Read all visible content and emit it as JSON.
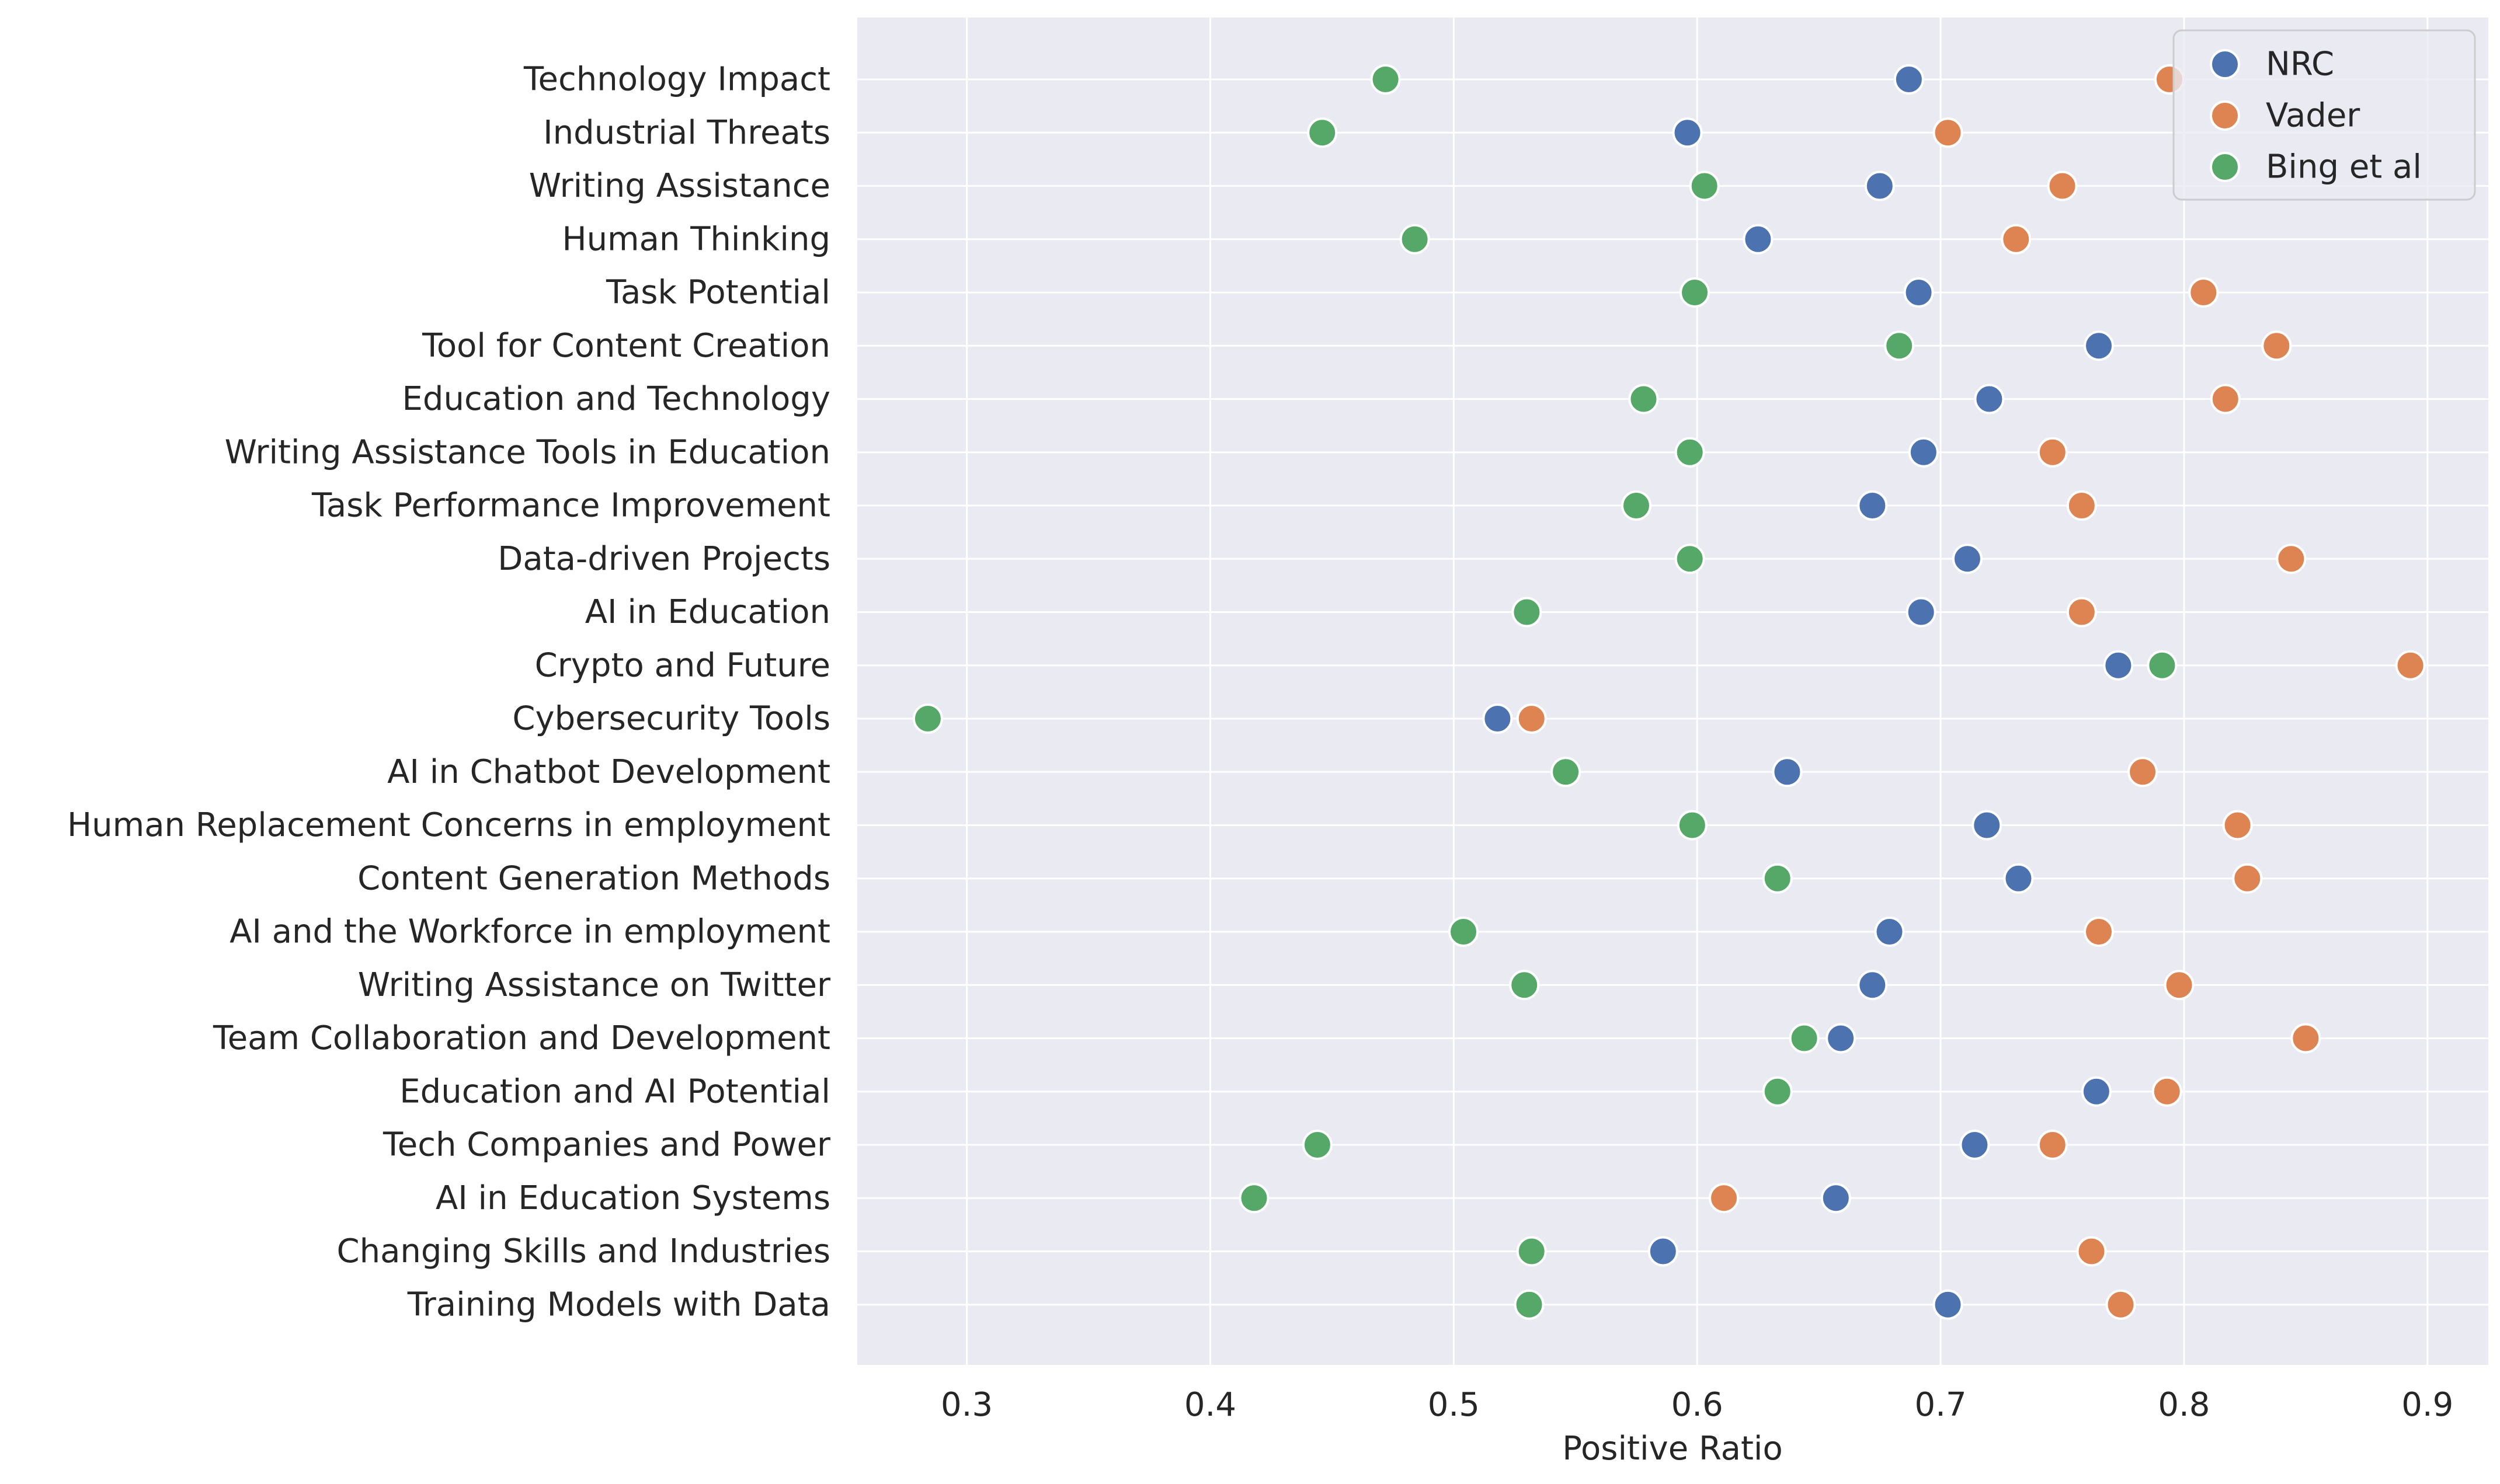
{
  "chart_data": {
    "type": "scatter",
    "xlabel": "Positive Ratio",
    "ylabel": "",
    "xlim": [
      0.255,
      0.925
    ],
    "xticks": [
      "0.3",
      "0.4",
      "0.5",
      "0.6",
      "0.7",
      "0.8",
      "0.9"
    ],
    "grid": true,
    "legend_position": "top-right",
    "categories": [
      "Technology Impact",
      "Industrial Threats",
      "Writing Assistance",
      "Human Thinking",
      "Task Potential",
      "Tool for Content Creation",
      "Education and Technology",
      "Writing Assistance Tools in Education",
      "Task Performance Improvement",
      "Data-driven Projects",
      "AI in Education",
      "Crypto and Future",
      "Cybersecurity Tools",
      "AI in Chatbot Development",
      "Human Replacement Concerns in employment",
      "Content Generation Methods",
      "AI and the Workforce in employment",
      "Writing Assistance on Twitter",
      "Team Collaboration and Development",
      "Education and AI Potential",
      "Tech Companies and Power",
      "AI in Education Systems",
      "Changing Skills and Industries",
      "Training Models with Data"
    ],
    "series": [
      {
        "name": "NRC",
        "color": "#4c72b0",
        "values": [
          0.687,
          0.596,
          0.675,
          0.625,
          0.691,
          0.765,
          0.72,
          0.693,
          0.672,
          0.711,
          0.692,
          0.773,
          0.518,
          0.637,
          0.719,
          0.732,
          0.679,
          0.672,
          0.659,
          0.764,
          0.714,
          0.657,
          0.586,
          0.703
        ]
      },
      {
        "name": "Vader",
        "color": "#dd8452",
        "values": [
          0.794,
          0.703,
          0.75,
          0.731,
          0.808,
          0.838,
          0.817,
          0.746,
          0.758,
          0.844,
          0.758,
          0.893,
          0.532,
          0.783,
          0.822,
          0.826,
          0.765,
          0.798,
          0.85,
          0.793,
          0.746,
          0.611,
          0.762,
          0.774
        ]
      },
      {
        "name": "Bing et al",
        "color": "#55a868",
        "values": [
          0.472,
          0.446,
          0.603,
          0.484,
          0.599,
          0.683,
          0.578,
          0.597,
          0.575,
          0.597,
          0.53,
          0.791,
          0.284,
          0.546,
          0.598,
          0.633,
          0.504,
          0.529,
          0.644,
          0.633,
          0.444,
          0.418,
          0.532,
          0.531
        ]
      }
    ]
  }
}
